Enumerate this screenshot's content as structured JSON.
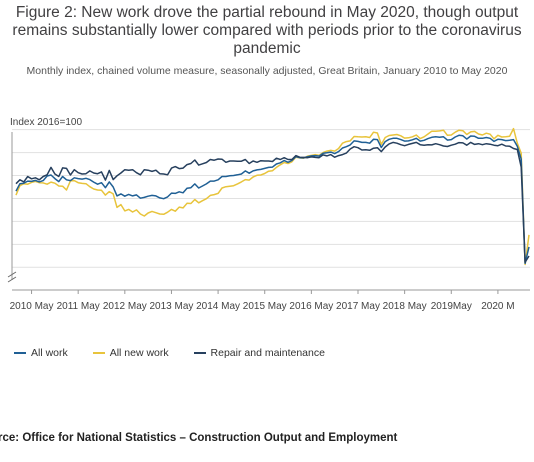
{
  "title": "Figure 2: New work drove the partial rebound in May 2020, though output remains substantially lower compared with periods prior to the coronavirus pandemic",
  "subtitle": "Monthly index, chained volume measure, seasonally adjusted, Great Britain, January 2010 to May 2020",
  "source": "urce: Office for National Statistics – Construction Output and Employment",
  "colors": {
    "all_work": "#206095",
    "all_new_work": "#e8c43c",
    "repair": "#27405e",
    "grid": "#e1e1e1",
    "axis": "#999999"
  },
  "chart_data": {
    "type": "line",
    "ylabel": "Index 2016=100",
    "x_tick_labels": [
      "2010 May",
      "2011 May",
      "2012 May",
      "2013 May",
      "2014 May",
      "2015 May",
      "2016 May",
      "2017 May",
      "2018 May",
      "2019May",
      "2020 M"
    ],
    "y_range": [
      50,
      112
    ],
    "y_gridlines": [
      55,
      64,
      73,
      82,
      91,
      100,
      109
    ],
    "axis_break": true,
    "legend_position": "bottom-left",
    "x_start": "2010-01",
    "x_end": "2020-05",
    "series": [
      {
        "name": "All work",
        "color_key": "all_work",
        "values": [
          84.9,
          87.8,
          88.0,
          88.8,
          88.7,
          89.1,
          88.5,
          89.0,
          90.8,
          91.2,
          89.8,
          88.6,
          90.6,
          89.3,
          89.0,
          90.1,
          89.8,
          89.6,
          89.9,
          89.4,
          88.4,
          87.6,
          88.2,
          86.2,
          88.5,
          86.5,
          83.0,
          83.8,
          82.9,
          83.6,
          83.0,
          83.4,
          82.1,
          82.4,
          82.9,
          83.2,
          83.0,
          82.2,
          81.9,
          82.6,
          84.1,
          84.0,
          84.6,
          84.2,
          86.0,
          86.2,
          87.7,
          86.1,
          86.9,
          87.7,
          88.8,
          88.8,
          89.3,
          90.6,
          90.6,
          90.9,
          91.0,
          91.3,
          91.6,
          92.8,
          91.9,
          92.8,
          93.2,
          93.4,
          93.8,
          94.2,
          94.3,
          95.5,
          96.0,
          96.9,
          96.2,
          96.9,
          98.4,
          98.0,
          97.9,
          98.4,
          98.7,
          98.8,
          98.6,
          99.7,
          99.9,
          100.2,
          99.6,
          100.4,
          101.8,
          102.3,
          103.0,
          104.6,
          104.4,
          104.0,
          104.0,
          103.7,
          105.2,
          105.1,
          102.0,
          104.3,
          105.2,
          105.6,
          105.6,
          105.1,
          104.5,
          104.6,
          105.0,
          105.6,
          104.5,
          104.8,
          105.5,
          106.0,
          106.2,
          106.0,
          106.2,
          104.9,
          105.1,
          106.1,
          106.8,
          106.6,
          105.3,
          106.5,
          106.4,
          105.6,
          105.6,
          105.9,
          105.6,
          104.4,
          105.2,
          105.1,
          104.7,
          104.8,
          105.1,
          102.5,
          97.4,
          56.5,
          63.0
        ]
      },
      {
        "name": "All new work",
        "color_key": "all_new_work",
        "values": [
          83.3,
          87.0,
          87.8,
          87.6,
          88.3,
          88.7,
          88.2,
          88.1,
          87.6,
          88.4,
          88.0,
          86.9,
          86.8,
          85.3,
          88.9,
          89.0,
          88.2,
          87.9,
          87.8,
          86.6,
          85.7,
          85.3,
          85.2,
          83.3,
          84.7,
          83.8,
          78.5,
          79.6,
          77.1,
          77.7,
          76.7,
          77.5,
          75.9,
          75.1,
          76.3,
          76.9,
          76.4,
          75.9,
          75.8,
          76.6,
          77.7,
          77.0,
          78.6,
          78.3,
          80.1,
          80.0,
          81.6,
          80.3,
          81.1,
          81.9,
          83.2,
          83.5,
          84.0,
          86.1,
          86.6,
          86.8,
          87.0,
          87.7,
          88.5,
          89.4,
          89.2,
          90.4,
          91.1,
          91.2,
          91.8,
          92.7,
          92.9,
          94.2,
          95.2,
          96.1,
          95.7,
          96.4,
          98.2,
          97.9,
          97.8,
          98.6,
          98.9,
          99.2,
          98.9,
          100.0,
          100.6,
          100.9,
          100.6,
          101.6,
          103.7,
          104.3,
          104.6,
          106.3,
          106.2,
          106.1,
          106.2,
          105.9,
          108.0,
          107.7,
          103.2,
          105.9,
          106.7,
          106.9,
          107.1,
          106.6,
          105.7,
          105.8,
          106.2,
          106.9,
          105.5,
          106.2,
          107.3,
          108.4,
          108.4,
          108.5,
          108.8,
          106.8,
          106.9,
          108.0,
          108.8,
          108.6,
          107.1,
          108.1,
          108.3,
          107.3,
          106.9,
          107.6,
          107.2,
          105.4,
          106.8,
          106.1,
          106.2,
          106.4,
          109.4,
          103.7,
          99.8,
          56.1,
          67.7
        ]
      },
      {
        "name": "Repair and maintenance",
        "color_key": "repair",
        "values": [
          87.8,
          89.3,
          88.5,
          90.6,
          89.7,
          90.1,
          89.3,
          90.6,
          91.3,
          94.2,
          91.6,
          90.6,
          94.0,
          93.8,
          91.2,
          93.3,
          92.1,
          91.6,
          91.7,
          92.8,
          92.0,
          91.7,
          92.4,
          89.2,
          93.0,
          89.4,
          90.9,
          92.0,
          93.3,
          93.1,
          93.3,
          92.1,
          91.3,
          93.3,
          93.1,
          92.6,
          93.1,
          91.7,
          91.6,
          91.3,
          93.9,
          94.5,
          93.7,
          93.9,
          95.3,
          95.7,
          97.1,
          95.1,
          95.6,
          96.1,
          97.3,
          97.0,
          97.5,
          97.4,
          96.2,
          96.7,
          96.7,
          96.6,
          96.6,
          97.3,
          95.7,
          96.7,
          96.2,
          96.8,
          96.7,
          96.7,
          96.5,
          97.8,
          97.3,
          98.0,
          97.3,
          97.3,
          98.8,
          98.2,
          98.1,
          98.0,
          98.3,
          98.1,
          98.0,
          99.1,
          98.7,
          99.2,
          98.2,
          98.8,
          99.2,
          99.8,
          101.4,
          102.3,
          101.9,
          101.0,
          101.1,
          100.9,
          101.7,
          101.9,
          100.4,
          102.2,
          103.4,
          104.0,
          103.7,
          103.1,
          102.7,
          103.2,
          103.6,
          104.0,
          103.1,
          102.9,
          103.1,
          103.0,
          103.5,
          103.1,
          102.6,
          102.4,
          102.9,
          103.3,
          103.9,
          103.8,
          102.9,
          104.0,
          103.2,
          103.5,
          103.1,
          103.5,
          103.3,
          102.9,
          102.7,
          103.3,
          102.6,
          102.5,
          101.6,
          101.2,
          94.3,
          57.0,
          59.4
        ]
      }
    ]
  }
}
